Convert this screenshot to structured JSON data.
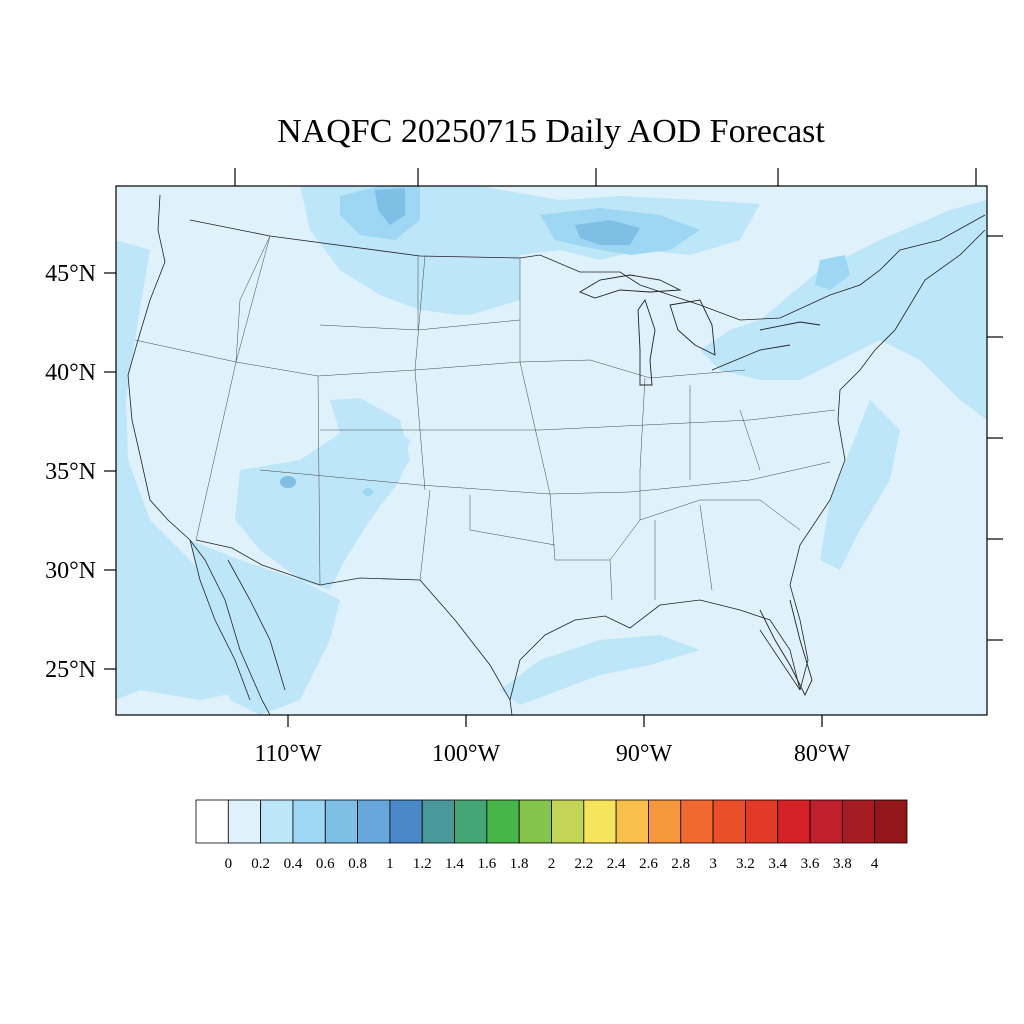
{
  "figure": {
    "title": "NAQFC 20250715 Daily AOD Forecast"
  },
  "map": {
    "lat_labels": [
      "45°N",
      "40°N",
      "35°N",
      "30°N",
      "25°N"
    ],
    "lon_labels": [
      "110°W",
      "100°W",
      "90°W",
      "80°W"
    ],
    "background_aod_color": "#dff2fb"
  },
  "colorbar": {
    "colors": [
      "#ffffff",
      "#dff2fb",
      "#bde6f8",
      "#9ed7f3",
      "#7fbfe6",
      "#67a7db",
      "#4a88c8",
      "#49999b",
      "#44a674",
      "#47b64a",
      "#84c44c",
      "#c4d657",
      "#f6e55a",
      "#f8c04a",
      "#f6983e",
      "#f2692f",
      "#e9502a",
      "#e13a27",
      "#d52128",
      "#c0202b",
      "#a71c22",
      "#931619"
    ],
    "labels": [
      "0",
      "0.2",
      "0.4",
      "0.6",
      "0.8",
      "1",
      "1.2",
      "1.4",
      "1.6",
      "1.8",
      "2",
      "2.2",
      "2.4",
      "2.6",
      "2.8",
      "3",
      "3.2",
      "3.4",
      "3.6",
      "3.8",
      "4"
    ]
  }
}
